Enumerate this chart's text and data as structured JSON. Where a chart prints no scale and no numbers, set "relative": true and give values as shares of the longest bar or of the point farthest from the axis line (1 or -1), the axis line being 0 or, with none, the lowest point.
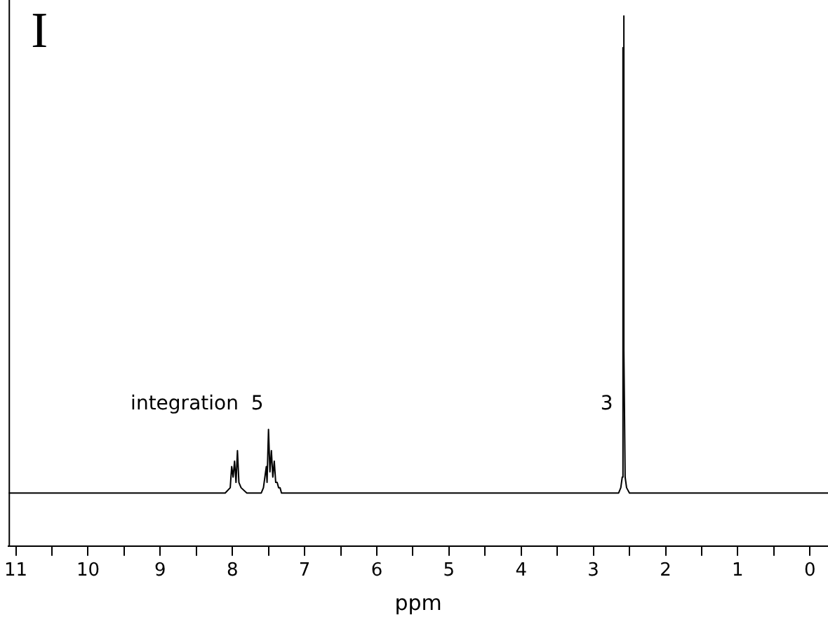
{
  "chart_data": {
    "type": "line",
    "title": "I",
    "xlabel": "ppm",
    "relative": true,
    "xlim": [
      11.1,
      -0.25
    ],
    "xticks": [
      11,
      {
        "value": 10.5,
        "label": null
      },
      10,
      {
        "value": 9.5,
        "label": null
      },
      9,
      {
        "value": 8.5,
        "label": null
      },
      8,
      {
        "value": 7.5,
        "label": null
      },
      7,
      {
        "value": 6.5,
        "label": null
      },
      6,
      {
        "value": 5.5,
        "label": null
      },
      5,
      {
        "value": 4.5,
        "label": null
      },
      4,
      {
        "value": 3.5,
        "label": null
      },
      3,
      {
        "value": 2.5,
        "label": null
      },
      2,
      {
        "value": 1.5,
        "label": null
      },
      1,
      {
        "value": 0.5,
        "label": null
      },
      0
    ],
    "grid": false,
    "legend": false,
    "marker": "none",
    "line_style": "solid",
    "annotations": [
      "integration  5",
      "3"
    ],
    "series": [
      {
        "color": "#000000",
        "x": [
          11.1,
          8.1,
          8.03,
          8.01,
          7.99,
          7.97,
          7.95,
          7.93,
          7.91,
          7.88,
          7.8,
          7.6,
          7.57,
          7.55,
          7.53,
          7.52,
          7.5,
          7.48,
          7.46,
          7.44,
          7.42,
          7.4,
          7.38,
          7.36,
          7.34,
          7.32,
          2.65,
          2.62,
          2.6,
          2.59,
          2.585,
          2.58,
          2.575,
          2.56,
          2.54,
          2.5,
          -0.25
        ],
        "values": [
          0.1,
          0.1,
          0.11,
          0.15,
          0.13,
          0.16,
          0.12,
          0.18,
          0.12,
          0.11,
          0.1,
          0.1,
          0.11,
          0.13,
          0.15,
          0.12,
          0.22,
          0.14,
          0.18,
          0.13,
          0.16,
          0.12,
          0.12,
          0.11,
          0.11,
          0.1,
          0.1,
          0.11,
          0.13,
          0.94,
          0.55,
          1,
          0.37,
          0.13,
          0.11,
          0.1,
          0.1
        ]
      }
    ]
  }
}
